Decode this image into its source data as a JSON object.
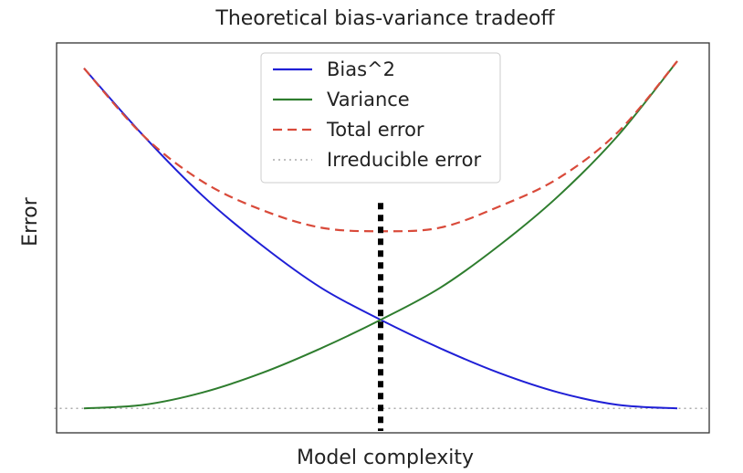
{
  "chart_data": {
    "type": "line",
    "title": "Theoretical bias-variance tradeoff",
    "xlabel": "Model complexity",
    "ylabel": "Error",
    "x_ticks": [],
    "y_ticks": [],
    "grid": false,
    "legend_position": "top-center",
    "xlim": [
      0,
      1
    ],
    "ylim": [
      0,
      1
    ],
    "series": [
      {
        "name": "Bias^2",
        "color": "#1f1fd6",
        "style": "solid",
        "x": [
          0,
          0.1,
          0.2,
          0.3,
          0.4,
          0.5,
          0.6,
          0.7,
          0.8,
          0.9,
          1.0
        ],
        "y": [
          0.98,
          0.79,
          0.62,
          0.48,
          0.36,
          0.27,
          0.19,
          0.12,
          0.065,
          0.03,
          0.02
        ]
      },
      {
        "name": "Variance",
        "color": "#2e7d2e",
        "style": "solid",
        "x": [
          0,
          0.1,
          0.2,
          0.3,
          0.4,
          0.5,
          0.6,
          0.7,
          0.8,
          0.9,
          1.0
        ],
        "y": [
          0.02,
          0.03,
          0.065,
          0.12,
          0.19,
          0.27,
          0.36,
          0.48,
          0.62,
          0.79,
          1.0
        ]
      },
      {
        "name": "Total error",
        "color": "#d94a3a",
        "style": "dashed",
        "x": [
          0,
          0.1,
          0.2,
          0.3,
          0.4,
          0.5,
          0.6,
          0.7,
          0.8,
          0.9,
          1.0
        ],
        "y": [
          0.98,
          0.79,
          0.66,
          0.58,
          0.53,
          0.52,
          0.53,
          0.59,
          0.67,
          0.8,
          1.0
        ]
      },
      {
        "name": "Irreducible error",
        "color": "#aaaaaa",
        "style": "dotted",
        "x": [
          -0.05,
          1.05
        ],
        "y": [
          0.02,
          0.02
        ]
      }
    ],
    "annotations": [
      {
        "type": "vertical-line",
        "x": 0.5,
        "y_from": -0.05,
        "y_to": 0.6,
        "color": "#000000",
        "style": "thick-dotted"
      }
    ]
  }
}
